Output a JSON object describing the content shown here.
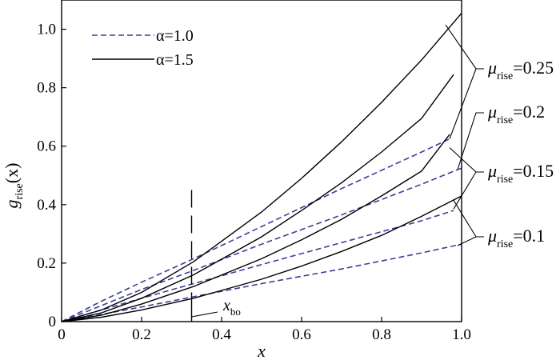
{
  "chart_data": {
    "type": "line",
    "xlabel": "x",
    "ylabel": {
      "main": "g",
      "sub": "rise",
      "arg": "(x)"
    },
    "xlim": [
      0,
      1.0
    ],
    "ylim": [
      0,
      1.1
    ],
    "xticks": [
      0,
      0.2,
      0.4,
      0.6,
      0.8,
      1.0
    ],
    "xtick_labels": [
      "0",
      "0.2",
      "0.4",
      "0.6",
      "0.8",
      "1.0"
    ],
    "yticks": [
      0,
      0.2,
      0.4,
      0.6,
      0.8,
      1.0
    ],
    "ytick_labels": [
      "0",
      "0.2",
      "0.4",
      "0.6",
      "0.8",
      "1.0"
    ],
    "grid": false,
    "legend": {
      "placement": "top-left",
      "entries": [
        {
          "label": "α=1.0",
          "style": "dashed",
          "color": "#3b3f9a"
        },
        {
          "label": "α=1.5",
          "style": "solid",
          "color": "#000000"
        }
      ]
    },
    "series": [
      {
        "alpha": "1.0",
        "mu": "0.25",
        "style": "dashed",
        "color": "#3b3f9a",
        "x": [
          0,
          0.1,
          0.2,
          0.33,
          0.5,
          0.7,
          0.9,
          0.97
        ],
        "y": [
          0,
          0.07,
          0.135,
          0.215,
          0.325,
          0.455,
          0.58,
          0.625
        ]
      },
      {
        "alpha": "1.0",
        "mu": "0.2",
        "style": "dashed",
        "color": "#3b3f9a",
        "x": [
          0,
          0.1,
          0.2,
          0.33,
          0.5,
          0.7,
          0.9,
          1.0
        ],
        "y": [
          0,
          0.055,
          0.11,
          0.175,
          0.265,
          0.365,
          0.47,
          0.525
        ]
      },
      {
        "alpha": "1.0",
        "mu": "0.15",
        "style": "dashed",
        "color": "#3b3f9a",
        "x": [
          0,
          0.1,
          0.2,
          0.33,
          0.5,
          0.7,
          0.9,
          0.98
        ],
        "y": [
          0,
          0.04,
          0.08,
          0.13,
          0.195,
          0.27,
          0.345,
          0.38
        ]
      },
      {
        "alpha": "1.0",
        "mu": "0.1",
        "style": "dashed",
        "color": "#3b3f9a",
        "x": [
          0,
          0.1,
          0.2,
          0.33,
          0.5,
          0.7,
          0.9,
          1.0
        ],
        "y": [
          0,
          0.025,
          0.05,
          0.085,
          0.13,
          0.18,
          0.235,
          0.265
        ]
      },
      {
        "alpha": "1.5",
        "mu": "0.25",
        "style": "solid",
        "color": "#000000",
        "x": [
          0,
          0.1,
          0.2,
          0.33,
          0.5,
          0.6,
          0.7,
          0.8,
          0.9,
          1.0
        ],
        "y": [
          0,
          0.04,
          0.1,
          0.205,
          0.375,
          0.49,
          0.615,
          0.75,
          0.895,
          1.055
        ]
      },
      {
        "alpha": "1.5",
        "mu": "0.2",
        "style": "solid",
        "color": "#000000",
        "x": [
          0,
          0.1,
          0.2,
          0.33,
          0.5,
          0.6,
          0.7,
          0.8,
          0.9,
          0.98
        ],
        "y": [
          0,
          0.03,
          0.08,
          0.16,
          0.29,
          0.38,
          0.475,
          0.58,
          0.695,
          0.845
        ]
      },
      {
        "alpha": "1.5",
        "mu": "0.15",
        "style": "solid",
        "color": "#000000",
        "x": [
          0,
          0.1,
          0.2,
          0.33,
          0.5,
          0.6,
          0.7,
          0.8,
          0.9,
          0.97
        ],
        "y": [
          0,
          0.022,
          0.06,
          0.12,
          0.215,
          0.28,
          0.35,
          0.43,
          0.515,
          0.64
        ]
      },
      {
        "alpha": "1.5",
        "mu": "0.1",
        "style": "solid",
        "color": "#000000",
        "x": [
          0,
          0.1,
          0.2,
          0.33,
          0.5,
          0.6,
          0.7,
          0.8,
          0.9,
          1.0
        ],
        "y": [
          0,
          0.015,
          0.04,
          0.08,
          0.145,
          0.19,
          0.24,
          0.295,
          0.36,
          0.43
        ]
      }
    ],
    "annotations": {
      "mu_symbol": "μ",
      "mu_sub": "rise",
      "mu_labels": [
        {
          "value": "=0.25",
          "targets": [
            [
              0.97,
              0.625
            ],
            [
              0.96,
              1.015
            ]
          ]
        },
        {
          "value": "=0.2",
          "targets": [
            [
              0.99,
              0.52
            ]
          ]
        },
        {
          "value": "=0.15",
          "targets": [
            [
              0.97,
              0.595
            ],
            [
              0.98,
              0.385
            ]
          ]
        },
        {
          "value": "=0.1",
          "targets": [
            [
              0.98,
              0.415
            ],
            [
              0.99,
              0.26
            ]
          ]
        }
      ],
      "x_bo": {
        "main": "x",
        "sub": "bo",
        "x": 0.325,
        "y_top": 0.45
      }
    }
  }
}
